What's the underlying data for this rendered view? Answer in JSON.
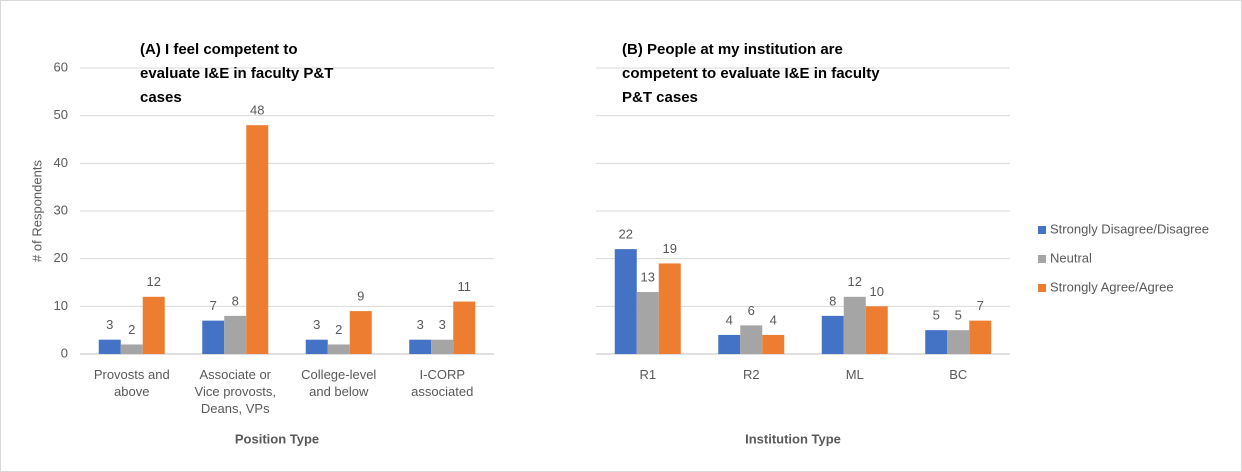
{
  "chart_data": [
    {
      "type": "bar",
      "title": "(A) I feel competent to evaluate I&E in faculty P&T cases",
      "y_label": "# of Respondents",
      "x_label": "Position Type",
      "categories": [
        "Provosts and above",
        "Associate or Vice provosts, Deans, VPs",
        "College-level and below",
        "I-CORP associated"
      ],
      "series": [
        {
          "color": "#4472c4",
          "values": [
            3,
            7,
            3,
            3
          ]
        },
        {
          "color": "#a5a5a5",
          "values": [
            2,
            8,
            2,
            3
          ]
        },
        {
          "color": "#ed7d31",
          "values": [
            12,
            48,
            9,
            11
          ]
        }
      ],
      "ylim": [
        0,
        60
      ],
      "yticks": [
        0,
        10,
        20,
        30,
        40,
        50,
        60
      ],
      "grid": true
    },
    {
      "type": "bar",
      "title": "(B) People at my institution are competent to evaluate I&E in faculty P&T cases",
      "x_label": "Institution Type",
      "categories": [
        "R1",
        "R2",
        "ML",
        "BC"
      ],
      "series": [
        {
          "name": "Strongly Disagree/Disagree",
          "color": "#4472c4",
          "values": [
            22,
            4,
            8,
            5
          ]
        },
        {
          "name": "Neutral",
          "color": "#a5a5a5",
          "values": [
            13,
            6,
            12,
            5
          ]
        },
        {
          "name": "Strongly Agree/Agree",
          "color": "#ed7d31",
          "values": [
            19,
            4,
            10,
            7
          ]
        }
      ],
      "ylim": [
        0,
        60
      ],
      "yticks": [
        0,
        10,
        20,
        30,
        40,
        50,
        60
      ],
      "grid": true
    }
  ]
}
